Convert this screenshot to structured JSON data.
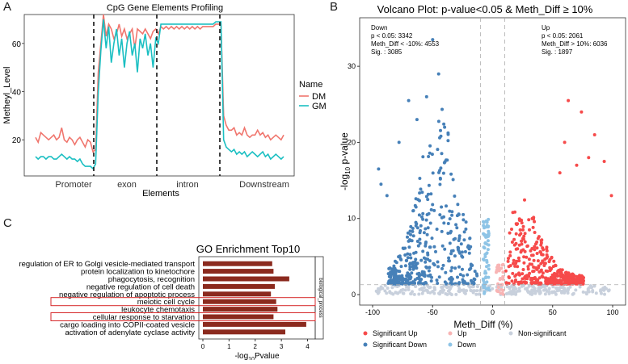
{
  "chart_data": [
    {
      "panel": "A",
      "type": "line",
      "title": "CpG Gene Elements Profiling",
      "xlabel": "Elements",
      "ylabel": "Metheyl_Level",
      "regions": [
        "Promoter",
        "exon",
        "intron",
        "Downstream"
      ],
      "ylim": [
        5,
        72
      ],
      "yticks": [
        20,
        40,
        60
      ],
      "legend": {
        "title": "Name",
        "position": "right"
      },
      "series": [
        {
          "name": "DM",
          "color": "#f0766e",
          "values": [
            21,
            19,
            23,
            22,
            21,
            20,
            21,
            22,
            20,
            21,
            25,
            20,
            19,
            21,
            20,
            18,
            20,
            21,
            19,
            17,
            20,
            19,
            15,
            16,
            48,
            60,
            72,
            63,
            68,
            66,
            62,
            64,
            68,
            63,
            66,
            62,
            64,
            66,
            58,
            66,
            65,
            64,
            66,
            64,
            62,
            65,
            66,
            64,
            67,
            66,
            67,
            66,
            67,
            66,
            67,
            66,
            67,
            66,
            67,
            66,
            67,
            66,
            67,
            66,
            67,
            67,
            67,
            67,
            67,
            68,
            68,
            68,
            30,
            26,
            24,
            24,
            25,
            22,
            23,
            22,
            25,
            22,
            21,
            22,
            22,
            24,
            22,
            23,
            21,
            22,
            20,
            21,
            22,
            21,
            20,
            22
          ]
        },
        {
          "name": "GM",
          "color": "#1bbfc2",
          "values": [
            13,
            12,
            13,
            13,
            12,
            13,
            13,
            12,
            12,
            13,
            14,
            13,
            12,
            13,
            12,
            12,
            11,
            12,
            10,
            9,
            9,
            9,
            8,
            10,
            40,
            57,
            70,
            58,
            67,
            52,
            60,
            66,
            55,
            62,
            50,
            60,
            65,
            55,
            60,
            48,
            62,
            58,
            64,
            55,
            60,
            50,
            62,
            60,
            68,
            68,
            68,
            68,
            68,
            68,
            68,
            68,
            68,
            68,
            68,
            68,
            68,
            68,
            68,
            68,
            68,
            68,
            68,
            68,
            68,
            69,
            69,
            69,
            20,
            17,
            16,
            15,
            16,
            14,
            15,
            14,
            15,
            13,
            14,
            15,
            14,
            13,
            14,
            15,
            13,
            14,
            12,
            13,
            14,
            13,
            12,
            13
          ]
        }
      ]
    },
    {
      "panel": "B",
      "type": "scatter",
      "title": "Volcano Plot: p-value<0.05 & Meth_Diff ≥ 10%",
      "xlabel": "Meth_Diff (%)",
      "ylabel": "-log10 p-value",
      "xlim": [
        -100,
        100
      ],
      "ylim": [
        0,
        35
      ],
      "xticks": [
        -100,
        -50,
        0,
        50,
        100
      ],
      "yticks": [
        0,
        10,
        20,
        30
      ],
      "thresholds": {
        "x": [
          -10,
          10
        ],
        "y": 1.3
      },
      "annotations": {
        "down": [
          "Down",
          "p < 0.05: 3342",
          "Meth_Diff < -10%: 4553",
          "Sig. : 3085"
        ],
        "up": [
          "Up",
          "p < 0.05: 2061",
          "Meth_Diff > 10%: 6036",
          "Sig. : 1897"
        ]
      },
      "legend": {
        "position": "bottom",
        "entries": [
          {
            "label": "Significant Up",
            "color": "#f64a4a"
          },
          {
            "label": "Up",
            "color": "#f8b4b4"
          },
          {
            "label": "Non-significant",
            "color": "#c8d0dc"
          },
          {
            "label": "Significant Down",
            "color": "#4680b8"
          },
          {
            "label": "Down",
            "color": "#8ec4e6"
          }
        ]
      }
    },
    {
      "panel": "C",
      "type": "bar",
      "orientation": "horizontal",
      "title": "GO Enrichment Top10",
      "xlabel": "-log10Pvalue",
      "xlim": [
        0,
        4.2
      ],
      "xticks": [
        0,
        1,
        2,
        3,
        4
      ],
      "facet_label": "biological_process",
      "color": "#8b2a1e",
      "categories": [
        "regulation of ER to Golgi vesicle-mediated transport",
        "protein localization to kinetochore",
        "phagocytosis, recognition",
        "negative regulation of cell death",
        "negative regulation of apoptotic process",
        "meiotic cell cycle",
        "leukocyte chemotaxis",
        "cellular response to starvation",
        "cargo loading into COPII-coated vesicle",
        "activation of adenylate cyclase activity"
      ],
      "values": [
        2.65,
        2.7,
        3.3,
        2.75,
        2.6,
        2.8,
        2.85,
        2.7,
        3.95,
        3.15
      ],
      "highlighted": [
        "meiotic cell cycle",
        "cellular response to starvation"
      ]
    }
  ]
}
